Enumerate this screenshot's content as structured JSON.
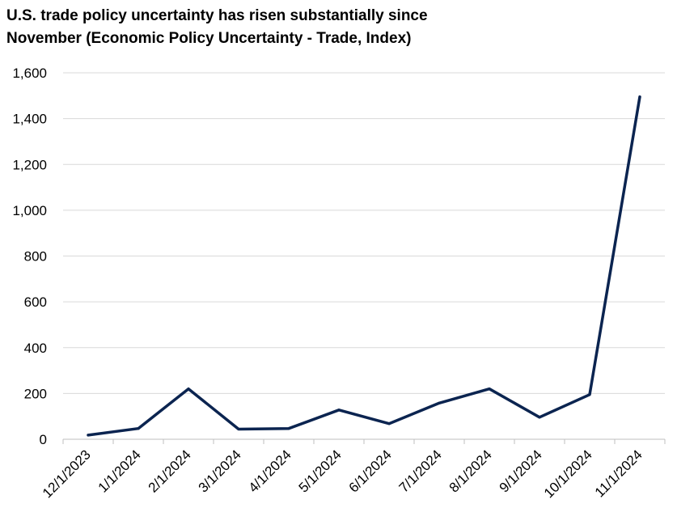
{
  "chart_data": {
    "type": "line",
    "title": "U.S. trade policy uncertainty has risen substantially since November (Economic Policy Uncertainty - Trade, Index)",
    "title_lines": [
      "U.S. trade policy uncertainty has risen substantially since",
      "November (Economic Policy Uncertainty - Trade, Index)"
    ],
    "xlabel": "",
    "ylabel": "",
    "categories": [
      "12/1/2023",
      "1/1/2024",
      "2/1/2024",
      "3/1/2024",
      "4/1/2024",
      "5/1/2024",
      "6/1/2024",
      "7/1/2024",
      "8/1/2024",
      "9/1/2024",
      "10/1/2024",
      "11/1/2024"
    ],
    "series": [
      {
        "values": [
          18,
          47,
          220,
          44,
          47,
          128,
          68,
          158,
          220,
          96,
          195,
          1495
        ],
        "color": "#0b2450"
      }
    ],
    "ylim": [
      0,
      1600
    ],
    "yticks": [
      0,
      200,
      400,
      600,
      800,
      1000,
      1200,
      1400,
      1600
    ],
    "ytick_labels": [
      "0",
      "200",
      "400",
      "600",
      "800",
      "1,000",
      "1,200",
      "1,400",
      "1,600"
    ],
    "grid": true,
    "legend": "none"
  }
}
